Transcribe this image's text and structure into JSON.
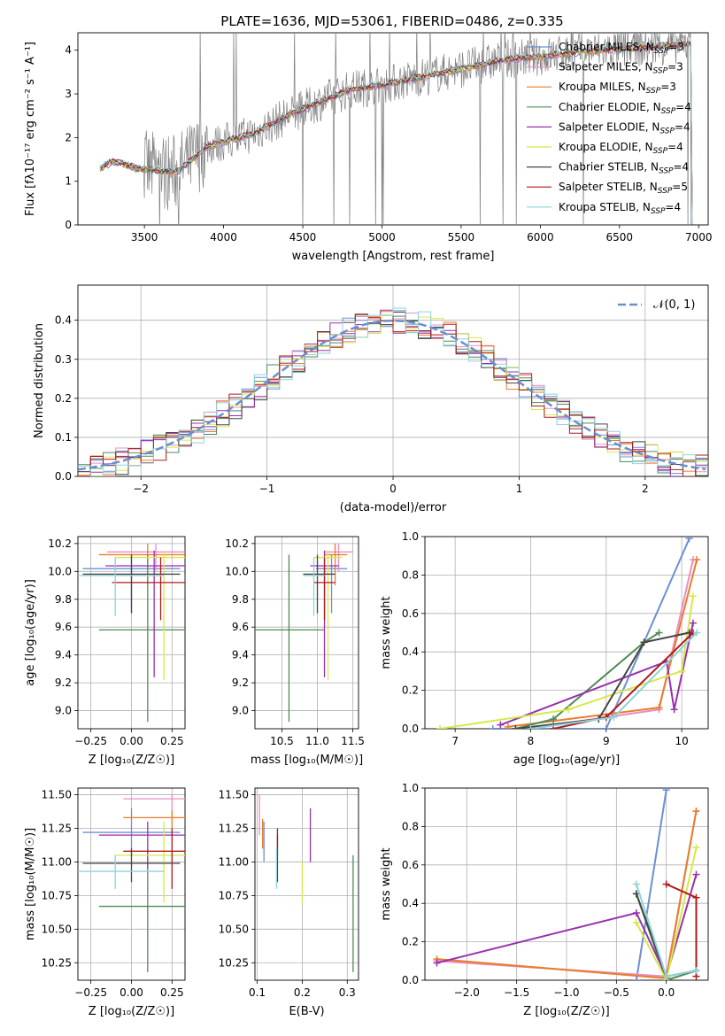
{
  "title": "PLATE=1636, MJD=53061, FIBERID=0486, z=0.335",
  "legend_top": [
    {
      "label": "Chabrier MILES, N",
      "sub": "SSP",
      "tail": "=3",
      "color": "#6b8fd6"
    },
    {
      "label": "Salpeter MILES, N",
      "sub": "SSP",
      "tail": "=3",
      "color": "#e98fc3"
    },
    {
      "label": "Kroupa MILES, N",
      "sub": "SSP",
      "tail": "=3",
      "color": "#e87d2b"
    },
    {
      "label": "Chabrier ELODIE, N",
      "sub": "SSP",
      "tail": "=4",
      "color": "#4f8a57"
    },
    {
      "label": "Salpeter ELODIE, N",
      "sub": "SSP",
      "tail": "=4",
      "color": "#9a2fae"
    },
    {
      "label": "Kroupa ELODIE, N",
      "sub": "SSP",
      "tail": "=4",
      "color": "#d6e84a"
    },
    {
      "label": "Chabrier STELIB, N",
      "sub": "SSP",
      "tail": "=4",
      "color": "#444444"
    },
    {
      "label": "Salpeter STELIB, N",
      "sub": "SSP",
      "tail": "=5",
      "color": "#b01a1a"
    },
    {
      "label": "Kroupa STELIB, N",
      "sub": "SSP",
      "tail": "=4",
      "color": "#8ed3da"
    }
  ],
  "chart_data": [
    {
      "type": "line",
      "name": "spectrum",
      "xlabel": "wavelength [Angstrom, rest frame]",
      "ylabel": "Flux [fλ10⁻¹⁷ erg cm⁻² s⁻¹ A⁻¹]",
      "xlim": [
        3080,
        7060
      ],
      "ylim": [
        0,
        4.4
      ],
      "xticks": [
        3500,
        4000,
        4500,
        5000,
        5500,
        6000,
        6500,
        7000
      ],
      "yticks": [
        0,
        1,
        2,
        3,
        4
      ],
      "continuum": [
        [
          3220,
          1.3
        ],
        [
          3300,
          1.45
        ],
        [
          3450,
          1.3
        ],
        [
          3700,
          1.2
        ],
        [
          3800,
          1.5
        ],
        [
          3900,
          1.8
        ],
        [
          4000,
          1.9
        ],
        [
          4200,
          2.1
        ],
        [
          4400,
          2.5
        ],
        [
          4600,
          2.8
        ],
        [
          4800,
          3.1
        ],
        [
          5000,
          3.2
        ],
        [
          5200,
          3.35
        ],
        [
          5400,
          3.5
        ],
        [
          5600,
          3.65
        ],
        [
          5800,
          3.8
        ],
        [
          6000,
          3.85
        ],
        [
          6200,
          3.95
        ],
        [
          6400,
          4.0
        ],
        [
          6600,
          4.05
        ],
        [
          6800,
          4.1
        ],
        [
          6950,
          4.15
        ]
      ]
    },
    {
      "type": "line",
      "name": "residual-histogram",
      "xlabel": "(data-model)/error",
      "ylabel": "Normed distribution",
      "xlim": [
        -2.5,
        2.5
      ],
      "ylim": [
        0,
        0.49
      ],
      "xticks": [
        -2,
        -1,
        0,
        1,
        2
      ],
      "yticks": [
        0.0,
        0.1,
        0.2,
        0.3,
        0.4
      ],
      "legend": "𝒩(0, 1)",
      "bin_width": 0.1
    },
    {
      "type": "scatter",
      "name": "age-vs-Z",
      "xlabel": "Z [log₁₀(Z/Z☉)]",
      "ylabel": "age  [log₁₀(age/yr)]",
      "xlim": [
        -0.33,
        0.33
      ],
      "ylim": [
        8.87,
        10.25
      ],
      "xticks": [
        -0.25,
        0.0,
        0.25
      ],
      "yticks": [
        9.0,
        9.2,
        9.4,
        9.6,
        9.8,
        10.0,
        10.2
      ],
      "points": [
        {
          "x": 0.0,
          "y": 10.02,
          "xerr": 0.3,
          "ylo": 9.7,
          "yhi": 10.12,
          "color": "#6b8fd6"
        },
        {
          "x": 0.15,
          "y": 10.14,
          "xerr": 0.3,
          "ylo": 10.0,
          "yhi": 10.2,
          "color": "#e98fc3"
        },
        {
          "x": 0.1,
          "y": 10.12,
          "xerr": 0.3,
          "ylo": 9.9,
          "yhi": 10.2,
          "color": "#e87d2b"
        },
        {
          "x": 0.1,
          "y": 9.58,
          "xerr": 0.3,
          "ylo": 8.92,
          "yhi": 10.12,
          "color": "#4f8a57"
        },
        {
          "x": 0.14,
          "y": 10.04,
          "xerr": 0.3,
          "ylo": 9.24,
          "yhi": 10.15,
          "color": "#9a2fae"
        },
        {
          "x": 0.2,
          "y": 10.1,
          "xerr": 0.3,
          "ylo": 9.22,
          "yhi": 10.15,
          "color": "#d6e84a"
        },
        {
          "x": 0.0,
          "y": 9.98,
          "xerr": 0.3,
          "ylo": 9.7,
          "yhi": 10.12,
          "color": "#444444"
        },
        {
          "x": 0.18,
          "y": 9.92,
          "xerr": 0.3,
          "ylo": 9.65,
          "yhi": 10.1,
          "color": "#b01a1a"
        },
        {
          "x": -0.1,
          "y": 9.97,
          "xerr": 0.3,
          "ylo": 9.68,
          "yhi": 10.1,
          "color": "#8ed3da"
        }
      ]
    },
    {
      "type": "scatter",
      "name": "age-vs-mass",
      "xlabel": "mass [log₁₀(M/M☉)]",
      "ylabel": "",
      "xlim": [
        10.12,
        11.58
      ],
      "ylim": [
        8.87,
        10.25
      ],
      "xticks": [
        10.5,
        11.0,
        11.5
      ],
      "yticks": [
        9.0,
        9.2,
        9.4,
        9.6,
        9.8,
        10.0,
        10.2
      ],
      "points": [
        {
          "x": 11.2,
          "y": 10.02,
          "xlo": 10.98,
          "xhi": 11.42,
          "ylo": 9.7,
          "yhi": 10.12,
          "color": "#6b8fd6"
        },
        {
          "x": 11.3,
          "y": 10.14,
          "xlo": 11.1,
          "xhi": 11.5,
          "ylo": 10.0,
          "yhi": 10.2,
          "color": "#e98fc3"
        },
        {
          "x": 11.25,
          "y": 10.12,
          "xlo": 11.1,
          "xhi": 11.42,
          "ylo": 9.9,
          "yhi": 10.2,
          "color": "#e87d2b"
        },
        {
          "x": 10.6,
          "y": 9.58,
          "xlo": 10.12,
          "xhi": 11.1,
          "ylo": 8.92,
          "yhi": 10.12,
          "color": "#4f8a57"
        },
        {
          "x": 11.1,
          "y": 10.04,
          "xlo": 10.9,
          "xhi": 11.3,
          "ylo": 9.24,
          "yhi": 10.15,
          "color": "#9a2fae"
        },
        {
          "x": 11.15,
          "y": 10.1,
          "xlo": 10.95,
          "xhi": 11.35,
          "ylo": 9.22,
          "yhi": 10.15,
          "color": "#d6e84a"
        },
        {
          "x": 11.0,
          "y": 9.98,
          "xlo": 10.8,
          "xhi": 11.25,
          "ylo": 9.7,
          "yhi": 10.12,
          "color": "#444444"
        },
        {
          "x": 11.1,
          "y": 9.92,
          "xlo": 10.95,
          "xhi": 11.25,
          "ylo": 9.65,
          "yhi": 10.1,
          "color": "#b01a1a"
        },
        {
          "x": 10.95,
          "y": 9.97,
          "xlo": 10.8,
          "xhi": 11.1,
          "ylo": 9.68,
          "yhi": 10.1,
          "color": "#8ed3da"
        }
      ]
    },
    {
      "type": "line",
      "name": "weight-vs-age",
      "xlabel": "age  [log₁₀(age/yr)]",
      "ylabel": "mass weight",
      "xlim": [
        6.6,
        10.35
      ],
      "ylim": [
        0,
        1.0
      ],
      "xticks": [
        7,
        8,
        9,
        10
      ],
      "yticks": [
        0.0,
        0.2,
        0.4,
        0.6,
        0.8,
        1.0
      ],
      "series": [
        {
          "color": "#6b8fd6",
          "x": [
            7.5,
            9.0,
            10.1
          ],
          "y": [
            0.0,
            0.0,
            0.99
          ]
        },
        {
          "color": "#e98fc3",
          "x": [
            8.3,
            9.7,
            10.15
          ],
          "y": [
            0.02,
            0.1,
            0.88
          ]
        },
        {
          "color": "#e87d2b",
          "x": [
            7.7,
            9.7,
            10.2
          ],
          "y": [
            0.01,
            0.11,
            0.88
          ]
        },
        {
          "color": "#4f8a57",
          "x": [
            7.8,
            8.3,
            9.5,
            9.7
          ],
          "y": [
            0.0,
            0.05,
            0.45,
            0.5
          ]
        },
        {
          "color": "#9a2fae",
          "x": [
            7.6,
            9.8,
            9.9,
            10.15
          ],
          "y": [
            0.02,
            0.35,
            0.1,
            0.55
          ]
        },
        {
          "color": "#d6e84a",
          "x": [
            6.8,
            8.5,
            10.0,
            10.15
          ],
          "y": [
            0.0,
            0.1,
            0.3,
            0.69
          ]
        },
        {
          "color": "#444444",
          "x": [
            7.8,
            8.9,
            9.5,
            10.1
          ],
          "y": [
            0.0,
            0.05,
            0.45,
            0.5
          ]
        },
        {
          "color": "#b01a1a",
          "x": [
            8.3,
            9.0,
            10.15
          ],
          "y": [
            0.0,
            0.06,
            0.5
          ]
        },
        {
          "color": "#8ed3da",
          "x": [
            8.0,
            9.1,
            10.2
          ],
          "y": [
            0.0,
            0.06,
            0.5
          ]
        }
      ]
    },
    {
      "type": "scatter",
      "name": "mass-vs-Z",
      "xlabel": "Z [log₁₀(Z/Z☉)]",
      "ylabel": "mass [log₁₀(M/M☉)]",
      "xlim": [
        -0.33,
        0.33
      ],
      "ylim": [
        10.12,
        11.55
      ],
      "xticks": [
        -0.25,
        0.0,
        0.25
      ],
      "yticks": [
        10.25,
        10.5,
        10.75,
        11.0,
        11.25,
        11.5
      ],
      "points": [
        {
          "x": 0.0,
          "y": 11.22,
          "xerr": 0.3,
          "ylo": 11.05,
          "yhi": 11.4,
          "color": "#6b8fd6"
        },
        {
          "x": 0.25,
          "y": 11.47,
          "xerr": 0.3,
          "ylo": 11.3,
          "yhi": 11.5,
          "color": "#e98fc3"
        },
        {
          "x": 0.25,
          "y": 11.33,
          "xerr": 0.3,
          "ylo": 11.15,
          "yhi": 11.38,
          "color": "#e87d2b"
        },
        {
          "x": 0.1,
          "y": 10.67,
          "xerr": 0.3,
          "ylo": 10.18,
          "yhi": 11.1,
          "color": "#4f8a57"
        },
        {
          "x": 0.1,
          "y": 11.2,
          "xerr": 0.3,
          "ylo": 10.95,
          "yhi": 11.3,
          "color": "#9a2fae"
        },
        {
          "x": 0.2,
          "y": 11.05,
          "xerr": 0.3,
          "ylo": 10.7,
          "yhi": 11.3,
          "color": "#d6e84a"
        },
        {
          "x": 0.0,
          "y": 10.99,
          "xerr": 0.3,
          "ylo": 10.85,
          "yhi": 11.1,
          "color": "#444444"
        },
        {
          "x": 0.25,
          "y": 11.08,
          "xerr": 0.3,
          "ylo": 10.8,
          "yhi": 11.25,
          "color": "#b01a1a"
        },
        {
          "x": -0.1,
          "y": 10.93,
          "xerr": 0.3,
          "ylo": 10.8,
          "yhi": 11.05,
          "color": "#8ed3da"
        }
      ]
    },
    {
      "type": "scatter",
      "name": "mass-vs-ebv",
      "xlabel": "E(B-V)",
      "ylabel": "",
      "xlim": [
        0.095,
        0.325
      ],
      "ylim": [
        10.12,
        11.55
      ],
      "xticks": [
        0.1,
        0.2,
        0.3
      ],
      "yticks": [
        10.25,
        10.5,
        10.75,
        11.0,
        11.25,
        11.5
      ],
      "points": [
        {
          "x": 0.115,
          "ylo": 11.0,
          "yhi": 11.3,
          "color": "#6b8fd6"
        },
        {
          "x": 0.105,
          "ylo": 11.2,
          "yhi": 11.5,
          "color": "#e98fc3"
        },
        {
          "x": 0.112,
          "ylo": 11.1,
          "yhi": 11.32,
          "color": "#e87d2b"
        },
        {
          "x": 0.313,
          "ylo": 10.18,
          "yhi": 11.05,
          "color": "#4f8a57"
        },
        {
          "x": 0.218,
          "ylo": 11.0,
          "yhi": 11.4,
          "color": "#9a2fae"
        },
        {
          "x": 0.2,
          "ylo": 10.68,
          "yhi": 11.0,
          "color": "#d6e84a"
        },
        {
          "x": 0.145,
          "ylo": 10.85,
          "yhi": 11.2,
          "color": "#444444"
        },
        {
          "x": 0.145,
          "ylo": 11.05,
          "yhi": 11.25,
          "color": "#b01a1a"
        },
        {
          "x": 0.143,
          "ylo": 10.8,
          "yhi": 11.1,
          "color": "#8ed3da"
        }
      ]
    },
    {
      "type": "line",
      "name": "weight-vs-Z",
      "xlabel": "Z [log₁₀(Z/Z☉)]",
      "ylabel": "mass weight",
      "xlim": [
        -2.42,
        0.42
      ],
      "ylim": [
        0,
        1.0
      ],
      "xticks": [
        -2.0,
        -1.5,
        -1.0,
        -0.5,
        0.0
      ],
      "yticks": [
        0.0,
        0.2,
        0.4,
        0.6,
        0.8,
        1.0
      ],
      "series": [
        {
          "color": "#6b8fd6",
          "x": [
            -0.3,
            0.0
          ],
          "y": [
            0.0,
            0.99
          ]
        },
        {
          "color": "#e98fc3",
          "x": [
            -2.3,
            0.0,
            0.3
          ],
          "y": [
            0.1,
            0.02,
            0.88
          ]
        },
        {
          "color": "#e87d2b",
          "x": [
            -2.3,
            0.0,
            0.3
          ],
          "y": [
            0.11,
            0.01,
            0.88
          ]
        },
        {
          "color": "#4f8a57",
          "x": [
            -0.3,
            0.0,
            0.3
          ],
          "y": [
            0.45,
            0.0,
            0.05
          ]
        },
        {
          "color": "#9a2fae",
          "x": [
            -2.3,
            -0.3,
            0.0,
            0.3
          ],
          "y": [
            0.09,
            0.35,
            0.02,
            0.55
          ]
        },
        {
          "color": "#d6e84a",
          "x": [
            -0.3,
            0.0,
            0.3
          ],
          "y": [
            0.3,
            0.0,
            0.69
          ]
        },
        {
          "color": "#444444",
          "x": [
            -0.3,
            0.0,
            0.3
          ],
          "y": [
            0.45,
            0.02,
            0.05
          ]
        },
        {
          "color": "#b01a1a",
          "x": [
            0.0,
            0.3,
            0.3
          ],
          "y": [
            0.5,
            0.43,
            0.02
          ]
        },
        {
          "color": "#8ed3da",
          "x": [
            -0.3,
            0.0,
            0.3
          ],
          "y": [
            0.5,
            0.02,
            0.05
          ]
        }
      ]
    }
  ]
}
